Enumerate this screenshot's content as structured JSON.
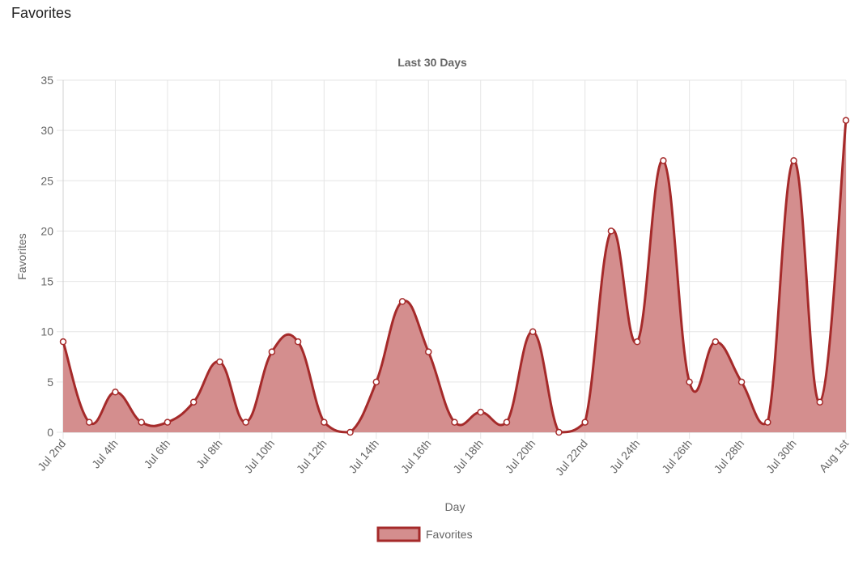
{
  "page": {
    "heading": "Favorites"
  },
  "colors": {
    "line": "#a52a2a",
    "fill": "#d48e8e",
    "grid": "#e5e5e5",
    "axis_text": "#666666"
  },
  "chart_data": {
    "type": "area",
    "title": "Last 30 Days",
    "xlabel": "Day",
    "ylabel": "Favorites",
    "ylim": [
      0,
      35
    ],
    "yticks": [
      0,
      5,
      10,
      15,
      20,
      25,
      30,
      35
    ],
    "grid": true,
    "legend_position": "bottom",
    "x": [
      "Jul 2nd",
      "Jul 3rd",
      "Jul 4th",
      "Jul 5th",
      "Jul 6th",
      "Jul 7th",
      "Jul 8th",
      "Jul 9th",
      "Jul 10th",
      "Jul 11th",
      "Jul 12th",
      "Jul 13th",
      "Jul 14th",
      "Jul 15th",
      "Jul 16th",
      "Jul 17th",
      "Jul 18th",
      "Jul 19th",
      "Jul 20th",
      "Jul 21st",
      "Jul 22nd",
      "Jul 23rd",
      "Jul 24th",
      "Jul 25th",
      "Jul 26th",
      "Jul 27th",
      "Jul 28th",
      "Jul 29th",
      "Jul 30th",
      "Jul 31st",
      "Aug 1st"
    ],
    "x_tick_labels": [
      "Jul 2nd",
      "Jul 4th",
      "Jul 6th",
      "Jul 8th",
      "Jul 10th",
      "Jul 12th",
      "Jul 14th",
      "Jul 16th",
      "Jul 18th",
      "Jul 20th",
      "Jul 22nd",
      "Jul 24th",
      "Jul 26th",
      "Jul 28th",
      "Jul 30th",
      "Aug 1st"
    ],
    "series": [
      {
        "name": "Favorites",
        "values": [
          9,
          1,
          4,
          1,
          1,
          3,
          7,
          1,
          8,
          9,
          1,
          0,
          5,
          13,
          8,
          1,
          2,
          1,
          10,
          0,
          1,
          20,
          9,
          27,
          5,
          9,
          5,
          1,
          27,
          3,
          31
        ]
      }
    ]
  }
}
